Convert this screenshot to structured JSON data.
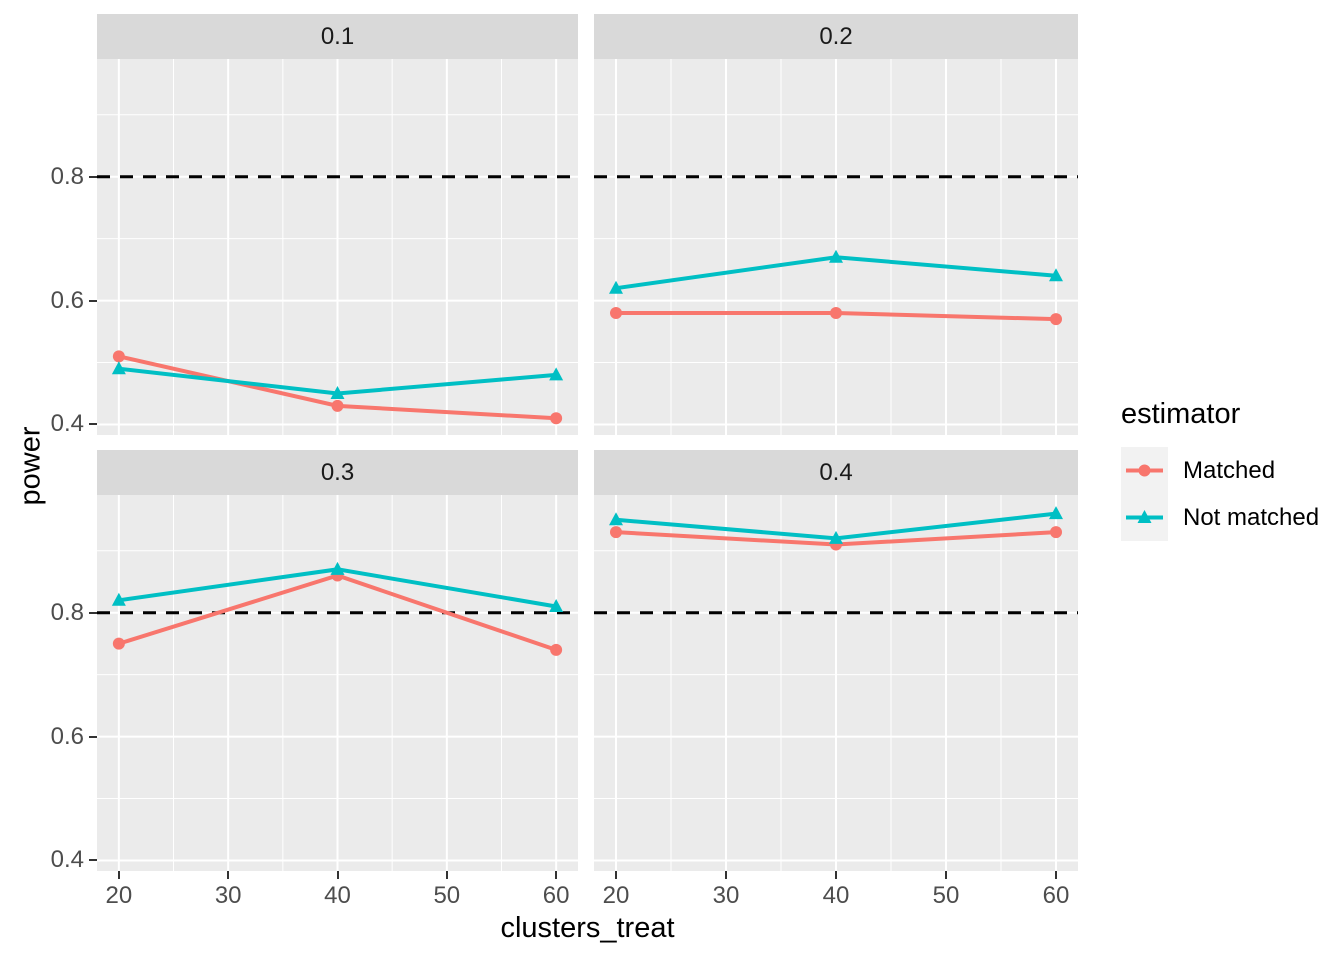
{
  "chart_data": {
    "type": "line",
    "title": "",
    "xlabel": "clusters_treat",
    "ylabel": "power",
    "x": [
      20,
      40,
      60
    ],
    "x_tick_labels": [
      "20",
      "30",
      "40",
      "50",
      "60"
    ],
    "y_tick_labels": [
      "0.8",
      "0.6",
      "0.4"
    ],
    "x_domain": [
      18,
      62
    ],
    "y_domain": [
      0.383,
      0.99
    ],
    "x_minor_gridlines": [
      25,
      35,
      45,
      55
    ],
    "y_minor_gridlines": [
      0.5,
      0.7,
      0.9
    ],
    "reference_line_y": 0.8,
    "grid": "on",
    "legend_position": "right",
    "facets": [
      {
        "label": "0.1",
        "series": [
          {
            "name": "Matched",
            "values": [
              0.51,
              0.43,
              0.41
            ]
          },
          {
            "name": "Not matched",
            "values": [
              0.49,
              0.45,
              0.48
            ]
          }
        ]
      },
      {
        "label": "0.2",
        "series": [
          {
            "name": "Matched",
            "values": [
              0.58,
              0.58,
              0.57
            ]
          },
          {
            "name": "Not matched",
            "values": [
              0.62,
              0.67,
              0.64
            ]
          }
        ]
      },
      {
        "label": "0.3",
        "series": [
          {
            "name": "Matched",
            "values": [
              0.75,
              0.86,
              0.74
            ]
          },
          {
            "name": "Not matched",
            "values": [
              0.82,
              0.87,
              0.81
            ]
          }
        ]
      },
      {
        "label": "0.4",
        "series": [
          {
            "name": "Matched",
            "values": [
              0.93,
              0.91,
              0.93
            ]
          },
          {
            "name": "Not matched",
            "values": [
              0.95,
              0.92,
              0.96
            ]
          }
        ]
      }
    ],
    "legend": {
      "title": "estimator",
      "items": [
        {
          "label": "Matched",
          "color": "#F8766D",
          "marker": "circle"
        },
        {
          "label": "Not matched",
          "color": "#00BFC4",
          "marker": "triangle"
        }
      ]
    },
    "colors": {
      "panel_background": "#EBEBEB",
      "strip_background": "#D9D9D9",
      "gridline": "#FFFFFF",
      "reference_line": "#000000",
      "axis_text": "#4D4D4D",
      "strip_text": "#1A1A1A",
      "tick_mark": "#333333",
      "legend_key_background": "#F2F2F2"
    }
  }
}
